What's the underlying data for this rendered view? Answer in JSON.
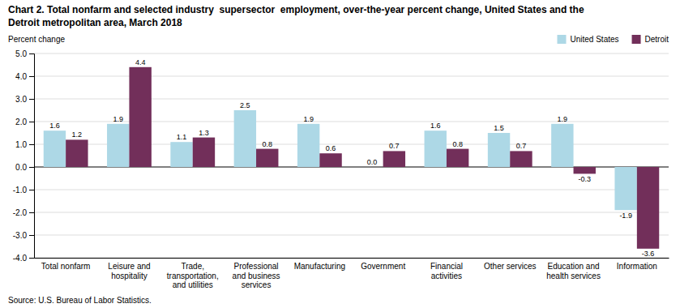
{
  "chart_data": {
    "type": "bar",
    "title": "Chart 2. Total nonfarm and selected industry  supersector  employment, over-the-year percent change, United States and the\nDetroit metropolitan area, March 2018",
    "ylabel": "Percent change",
    "source": "Source: U.S. Bureau of Labor Statistics.",
    "categories": [
      "Total nonfarm",
      "Leisure and\nhospitality",
      "Trade,\ntransportation,\nand utilities",
      "Professional\nand business\nservices",
      "Manufacturing",
      "Government",
      "Financial\nactivities",
      "Other services",
      "Education and\nhealth services",
      "Information"
    ],
    "series": [
      {
        "name": "United States",
        "color": "#ADD8E6",
        "values": [
          1.6,
          1.9,
          1.1,
          2.5,
          1.9,
          0.0,
          1.6,
          1.5,
          1.9,
          -1.9
        ],
        "value_labels": [
          "1.6",
          "1.9",
          "1.1",
          "2.5",
          "1.9",
          "0.0",
          "1.6",
          "1.5",
          "1.9",
          "-1.9"
        ]
      },
      {
        "name": "Detroit",
        "color": "#722F5A",
        "values": [
          1.2,
          4.4,
          1.3,
          0.8,
          0.6,
          0.7,
          0.8,
          0.7,
          -0.3,
          -3.6
        ],
        "value_labels": [
          "1.2",
          "4.4",
          "1.3",
          "0.8",
          "0.6",
          "0.7",
          "0.8",
          "0.7",
          "-0.3",
          "-3.6"
        ]
      }
    ],
    "ylim": [
      -4.0,
      5.0
    ],
    "yticks": [
      {
        "value": -4.0,
        "label": "-4.0"
      },
      {
        "value": -3.0,
        "label": "-3.0"
      },
      {
        "value": -2.0,
        "label": "-2.0"
      },
      {
        "value": -1.0,
        "label": "-1.0"
      },
      {
        "value": 0.0,
        "label": "0.0"
      },
      {
        "value": 1.0,
        "label": "1.0"
      },
      {
        "value": 2.0,
        "label": "2.0"
      },
      {
        "value": 3.0,
        "label": "3.0"
      },
      {
        "value": 4.0,
        "label": "4.0"
      },
      {
        "value": 5.0,
        "label": "5.0"
      }
    ],
    "grid": true,
    "legend": "upper right",
    "data_labels": true
  }
}
